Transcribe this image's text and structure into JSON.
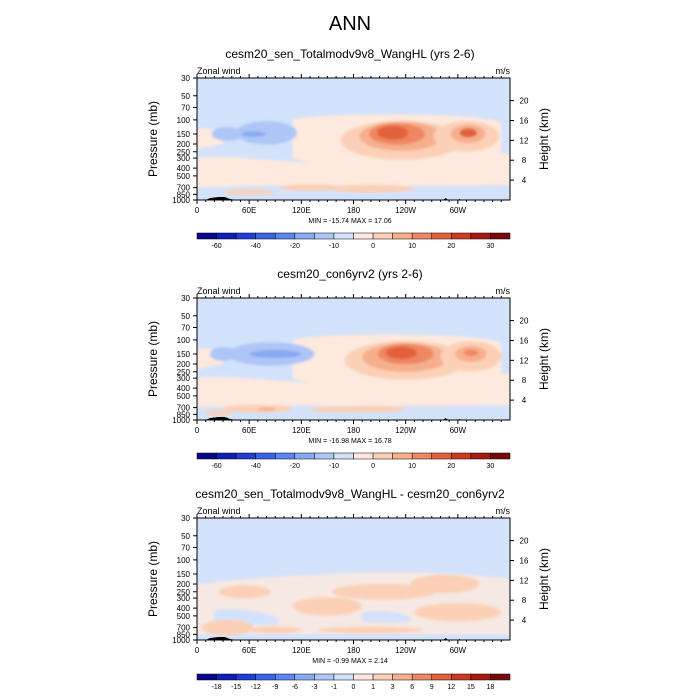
{
  "page_title": "ANN",
  "chart_data": [
    {
      "type": "heatmap",
      "title": "cesm20_sen_Totalmodv9v8_WangHL (yrs 2-6)",
      "left_string": "Zonal wind",
      "right_string": "m/s",
      "xlabel": "",
      "ylabel": "Pressure (mb)",
      "ylabel_right": "Height (km)",
      "xticks": [
        "0",
        "60E",
        "120E",
        "180",
        "120W",
        "60W"
      ],
      "yticks": [
        "30",
        "50",
        "70",
        "100",
        "150",
        "200",
        "250",
        "300",
        "400",
        "500",
        "700",
        "850",
        "1000"
      ],
      "yticks_right": [
        "4",
        "8",
        "12",
        "16",
        "20"
      ],
      "stats": "MIN = -15.74  MAX =  17.06",
      "colorbar_labels": [
        "-60",
        "-40",
        "-20",
        "-10",
        "0",
        "10",
        "20",
        "30"
      ],
      "contour_levels": [
        -70,
        -60,
        -50,
        -40,
        -30,
        -20,
        -15,
        -10,
        -5,
        0,
        5,
        10,
        15,
        20,
        25,
        30
      ],
      "min": -15.74,
      "max": 17.06
    },
    {
      "type": "heatmap",
      "title": "cesm20_con6yrv2 (yrs 2-6)",
      "left_string": "Zonal wind",
      "right_string": "m/s",
      "xlabel": "",
      "ylabel": "Pressure (mb)",
      "ylabel_right": "Height (km)",
      "xticks": [
        "0",
        "60E",
        "120E",
        "180",
        "120W",
        "60W"
      ],
      "yticks": [
        "30",
        "50",
        "70",
        "100",
        "150",
        "200",
        "250",
        "300",
        "400",
        "500",
        "700",
        "850",
        "1000"
      ],
      "yticks_right": [
        "4",
        "8",
        "12",
        "16",
        "20"
      ],
      "stats": "MIN = -16.98  MAX =  16.78",
      "colorbar_labels": [
        "-60",
        "-40",
        "-20",
        "-10",
        "0",
        "10",
        "20",
        "30"
      ],
      "contour_levels": [
        -70,
        -60,
        -50,
        -40,
        -30,
        -20,
        -15,
        -10,
        -5,
        0,
        5,
        10,
        15,
        20,
        25,
        30
      ],
      "min": -16.98,
      "max": 16.78
    },
    {
      "type": "heatmap",
      "title": "cesm20_sen_Totalmodv9v8_WangHL - cesm20_con6yrv2",
      "left_string": "Zonal wind",
      "right_string": "m/s",
      "xlabel": "",
      "ylabel": "Pressure (mb)",
      "ylabel_right": "Height (km)",
      "xticks": [
        "0",
        "60E",
        "120E",
        "180",
        "120W",
        "60W"
      ],
      "yticks": [
        "30",
        "50",
        "70",
        "100",
        "150",
        "200",
        "250",
        "300",
        "400",
        "500",
        "700",
        "850",
        "1000"
      ],
      "yticks_right": [
        "4",
        "8",
        "12",
        "16",
        "20"
      ],
      "stats": "MIN =  -0.99  MAX =   2.14",
      "colorbar_labels": [
        "-18",
        "-15",
        "-12",
        "-9",
        "-6",
        "-3",
        "-1",
        "0",
        "1",
        "3",
        "6",
        "9",
        "12",
        "15",
        "18"
      ],
      "contour_levels": [
        -20,
        -18,
        -15,
        -12,
        -9,
        -6,
        -3,
        -1,
        0,
        1,
        3,
        6,
        9,
        12,
        15,
        18
      ],
      "min": -0.99,
      "max": 2.14
    }
  ],
  "colors": {
    "palette": [
      "#08078a",
      "#0d1fb8",
      "#1d3fd6",
      "#3a63e8",
      "#5b86ef",
      "#86a9f2",
      "#adc6f7",
      "#d3e2fb",
      "#fde9dd",
      "#fbd0b6",
      "#f6ae8c",
      "#ef8762",
      "#e3603c",
      "#cc3a1f",
      "#a61a10",
      "#750c0b"
    ],
    "axis": "#000000",
    "topography": "#000000"
  }
}
